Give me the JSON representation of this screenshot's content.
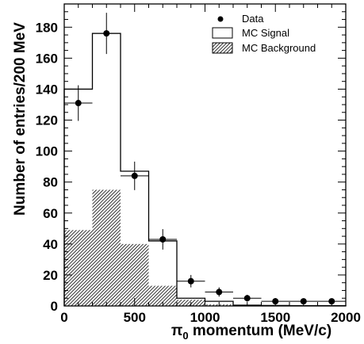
{
  "chart_data": {
    "type": "bar",
    "xlabel": "π",
    "xlabel_subscript": "0",
    "xlabel_rest": " momentum (MeV/c)",
    "ylabel": "Number of entries/200 MeV",
    "xlim": [
      0,
      2000
    ],
    "ylim": [
      0,
      195
    ],
    "xticks": [
      0,
      500,
      1000,
      1500,
      2000
    ],
    "yticks": [
      0,
      20,
      40,
      60,
      80,
      100,
      120,
      140,
      160,
      180
    ],
    "bin_edges": [
      0,
      200,
      400,
      600,
      800,
      1000,
      1200,
      1400,
      1600,
      1800,
      2000
    ],
    "legend_position": "top-right",
    "series": [
      {
        "name": "MC Signal",
        "kind": "open-histogram",
        "values": [
          140,
          176,
          87,
          42,
          5,
          3,
          0.5,
          0.3,
          0.2,
          0.2
        ]
      },
      {
        "name": "MC Background",
        "kind": "hatched-histogram",
        "values": [
          49,
          75,
          40,
          13,
          4,
          1,
          0.5,
          0.3,
          0.2,
          0.2
        ]
      },
      {
        "name": "Data",
        "kind": "points",
        "x": [
          100,
          300,
          500,
          700,
          900,
          1100,
          1300,
          1500,
          1700,
          1900
        ],
        "y": [
          131,
          176,
          84,
          43,
          16,
          9,
          5,
          3,
          3,
          3
        ],
        "yerr": [
          11.5,
          13.3,
          9.2,
          6.6,
          4,
          3,
          2.2,
          1.7,
          1.7,
          1.7
        ]
      }
    ]
  }
}
